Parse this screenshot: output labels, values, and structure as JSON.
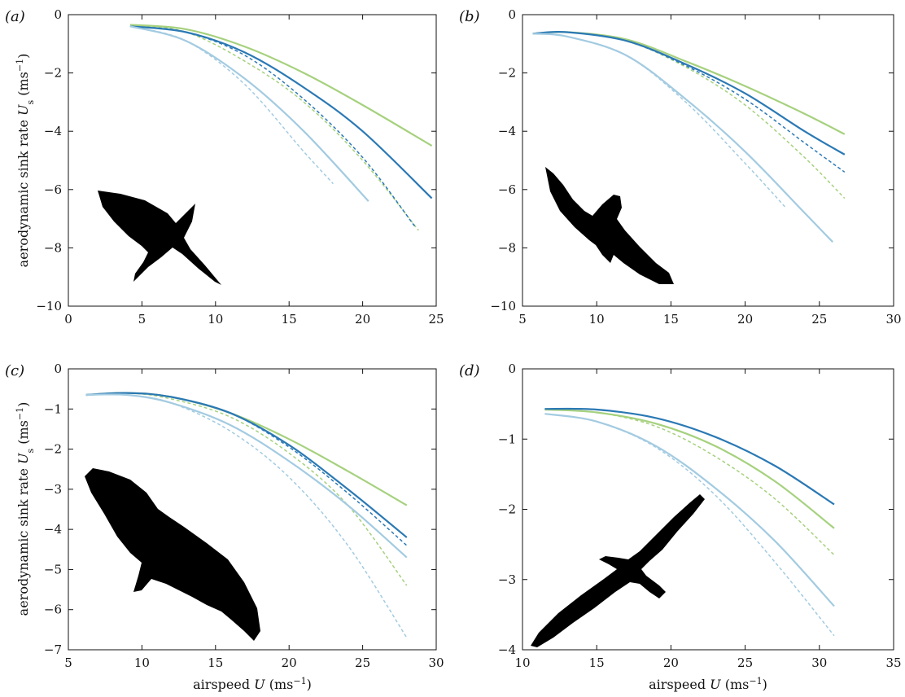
{
  "figure": {
    "ylabel_main": "aerodynamic sink rate ",
    "ylabel_sym": "U",
    "ylabel_sub": "s",
    "ylabel_unit": " (ms",
    "ylabel_unit_exp": "−1",
    "ylabel_close": ")",
    "xlabel_main": "airspeed ",
    "xlabel_sym": "U",
    "xlabel_unit": " (ms",
    "xlabel_unit_exp": "−1",
    "xlabel_close": ")"
  },
  "colors": {
    "green": "#a6d17e",
    "dark_blue": "#2b79b4",
    "light_blue": "#a3cbe1",
    "silhouette": "#000000"
  },
  "chart_data": [
    {
      "type": "line",
      "panel_label": "(a)",
      "silhouette": "swallow-like bird",
      "xlim": [
        0,
        25
      ],
      "ylim": [
        -10,
        0
      ],
      "xticks": [
        0,
        5,
        10,
        15,
        20,
        25
      ],
      "yticks": [
        -10,
        -8,
        -6,
        -4,
        -2,
        0
      ],
      "series": [
        {
          "color": "green",
          "style": "solid",
          "x": [
            4.2,
            8,
            12,
            16,
            20,
            24.7
          ],
          "y": [
            -0.35,
            -0.5,
            -1.1,
            -2.0,
            -3.1,
            -4.5
          ]
        },
        {
          "color": "green",
          "style": "dashed",
          "x": [
            4.2,
            8,
            12,
            16,
            20,
            23.8
          ],
          "y": [
            -0.35,
            -0.6,
            -1.6,
            -3.0,
            -5.0,
            -7.4
          ]
        },
        {
          "color": "dark_blue",
          "style": "solid",
          "x": [
            4.2,
            8,
            12,
            16,
            20,
            24.7
          ],
          "y": [
            -0.4,
            -0.6,
            -1.3,
            -2.5,
            -4.0,
            -6.3
          ]
        },
        {
          "color": "dark_blue",
          "style": "dashed",
          "x": [
            4.2,
            8,
            12,
            16,
            20,
            23.6
          ],
          "y": [
            -0.4,
            -0.6,
            -1.4,
            -2.9,
            -4.9,
            -7.3
          ]
        },
        {
          "color": "light_blue",
          "style": "solid",
          "x": [
            4.2,
            8,
            12,
            16,
            20.4
          ],
          "y": [
            -0.4,
            -0.9,
            -2.2,
            -4.0,
            -6.4
          ]
        },
        {
          "color": "light_blue",
          "style": "dashed",
          "x": [
            4.2,
            8,
            12,
            16,
            18
          ],
          "y": [
            -0.4,
            -0.9,
            -2.4,
            -4.7,
            -5.8
          ]
        }
      ]
    },
    {
      "type": "line",
      "panel_label": "(b)",
      "silhouette": "hawk-like bird",
      "xlim": [
        5,
        30
      ],
      "ylim": [
        -10,
        0
      ],
      "xticks": [
        5,
        10,
        15,
        20,
        25,
        30
      ],
      "yticks": [
        -10,
        -8,
        -6,
        -4,
        -2,
        0
      ],
      "series": [
        {
          "color": "green",
          "style": "solid",
          "x": [
            5.7,
            8,
            12,
            16,
            20,
            24,
            26.7
          ],
          "y": [
            -0.65,
            -0.6,
            -0.85,
            -1.6,
            -2.45,
            -3.4,
            -4.1
          ]
        },
        {
          "color": "green",
          "style": "dashed",
          "x": [
            5.7,
            8,
            12,
            16,
            20,
            24,
            26.7
          ],
          "y": [
            -0.65,
            -0.6,
            -0.9,
            -1.8,
            -3.1,
            -4.9,
            -6.3
          ]
        },
        {
          "color": "dark_blue",
          "style": "solid",
          "x": [
            5.7,
            8,
            12,
            16,
            20,
            24,
            26.7
          ],
          "y": [
            -0.65,
            -0.6,
            -0.9,
            -1.7,
            -2.7,
            -4.0,
            -4.8
          ]
        },
        {
          "color": "dark_blue",
          "style": "dashed",
          "x": [
            5.7,
            8,
            12,
            16,
            20,
            24,
            26.7
          ],
          "y": [
            -0.65,
            -0.6,
            -0.9,
            -1.75,
            -2.9,
            -4.4,
            -5.4
          ]
        },
        {
          "color": "light_blue",
          "style": "solid",
          "x": [
            5.7,
            8,
            12,
            16,
            20,
            24,
            25.9
          ],
          "y": [
            -0.65,
            -0.75,
            -1.4,
            -2.9,
            -4.7,
            -6.8,
            -7.8
          ]
        },
        {
          "color": "light_blue",
          "style": "dashed",
          "x": [
            5.7,
            8,
            12,
            16,
            20,
            22.7
          ],
          "y": [
            -0.65,
            -0.75,
            -1.4,
            -3.0,
            -5.1,
            -6.6
          ]
        }
      ]
    },
    {
      "type": "line",
      "panel_label": "(c)",
      "silhouette": "eagle-like bird",
      "xlim": [
        5,
        30
      ],
      "ylim": [
        -7,
        0
      ],
      "xticks": [
        5,
        10,
        15,
        20,
        25,
        30
      ],
      "yticks": [
        -7,
        -6,
        -5,
        -4,
        -3,
        -2,
        -1,
        0
      ],
      "series": [
        {
          "color": "green",
          "style": "solid",
          "x": [
            6.2,
            9,
            12,
            16,
            20,
            24,
            28
          ],
          "y": [
            -0.65,
            -0.6,
            -0.7,
            -1.1,
            -1.75,
            -2.55,
            -3.4
          ]
        },
        {
          "color": "green",
          "style": "dashed",
          "x": [
            6.2,
            9,
            12,
            16,
            20,
            24,
            28
          ],
          "y": [
            -0.65,
            -0.6,
            -0.75,
            -1.2,
            -2.1,
            -3.4,
            -5.4
          ]
        },
        {
          "color": "dark_blue",
          "style": "solid",
          "x": [
            6.2,
            9,
            12,
            16,
            20,
            24,
            28
          ],
          "y": [
            -0.65,
            -0.6,
            -0.7,
            -1.1,
            -1.9,
            -3.0,
            -4.2
          ]
        },
        {
          "color": "dark_blue",
          "style": "dashed",
          "x": [
            6.2,
            9,
            12,
            16,
            20,
            24,
            28
          ],
          "y": [
            -0.65,
            -0.6,
            -0.7,
            -1.1,
            -1.95,
            -3.1,
            -4.4
          ]
        },
        {
          "color": "light_blue",
          "style": "solid",
          "x": [
            6.2,
            9,
            12,
            16,
            20,
            24,
            28
          ],
          "y": [
            -0.65,
            -0.65,
            -0.85,
            -1.4,
            -2.3,
            -3.4,
            -4.7
          ]
        },
        {
          "color": "light_blue",
          "style": "dashed",
          "x": [
            6.2,
            9,
            12,
            16,
            20,
            24,
            28
          ],
          "y": [
            -0.65,
            -0.65,
            -0.85,
            -1.55,
            -2.7,
            -4.4,
            -6.7
          ]
        }
      ]
    },
    {
      "type": "line",
      "panel_label": "(d)",
      "silhouette": "albatross-like bird",
      "xlim": [
        10,
        35
      ],
      "ylim": [
        -4,
        0
      ],
      "xticks": [
        10,
        15,
        20,
        25,
        30,
        35
      ],
      "yticks": [
        -4,
        -3,
        -2,
        -1,
        0
      ],
      "series": [
        {
          "color": "green",
          "style": "solid",
          "x": [
            11.5,
            15,
            19,
            23,
            27,
            31
          ],
          "y": [
            -0.58,
            -0.62,
            -0.78,
            -1.1,
            -1.6,
            -2.27
          ]
        },
        {
          "color": "green",
          "style": "dashed",
          "x": [
            11.5,
            15,
            19,
            23,
            27,
            31
          ],
          "y": [
            -0.58,
            -0.62,
            -0.82,
            -1.25,
            -1.85,
            -2.65
          ]
        },
        {
          "color": "dark_blue",
          "style": "solid",
          "x": [
            11.5,
            15,
            19,
            23,
            27,
            31
          ],
          "y": [
            -0.57,
            -0.58,
            -0.7,
            -0.97,
            -1.38,
            -1.93
          ]
        },
        {
          "color": "dark_blue",
          "style": "dashed",
          "x": [
            11.5,
            15,
            19,
            23,
            27,
            31
          ],
          "y": [
            -0.57,
            -0.58,
            -0.7,
            -0.97,
            -1.38,
            -1.93
          ]
        },
        {
          "color": "light_blue",
          "style": "solid",
          "x": [
            11.5,
            15,
            19,
            23,
            27,
            31
          ],
          "y": [
            -0.64,
            -0.75,
            -1.1,
            -1.7,
            -2.45,
            -3.38
          ]
        },
        {
          "color": "light_blue",
          "style": "dashed",
          "x": [
            11.5,
            15,
            19,
            23,
            27,
            31
          ],
          "y": [
            -0.64,
            -0.75,
            -1.12,
            -1.8,
            -2.75,
            -3.8
          ]
        }
      ]
    }
  ]
}
